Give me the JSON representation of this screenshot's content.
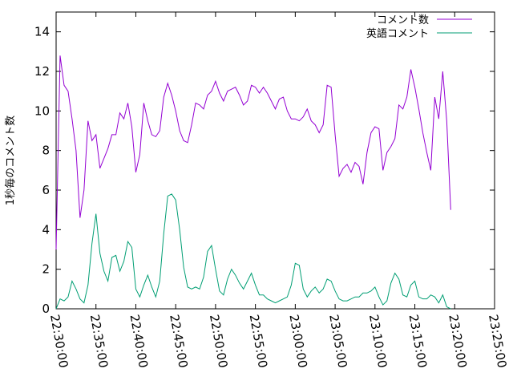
{
  "chart_data": {
    "type": "line",
    "ylabel": "1秒毎のコメント数",
    "xlim_minutes": [
      0,
      55
    ],
    "ylim": [
      0,
      15
    ],
    "x_tick_labels": [
      "22:30:00",
      "22:35:00",
      "22:40:00",
      "22:45:00",
      "22:50:00",
      "22:55:00",
      "23:00:00",
      "23:05:00",
      "23:10:00",
      "23:15:00",
      "23:20:00",
      "23:25:00"
    ],
    "y_tick_labels": [
      "0",
      "2",
      "4",
      "6",
      "8",
      "10",
      "12",
      "14"
    ],
    "legend_position": "top-right",
    "series": [
      {
        "name": "コメント数",
        "color": "#9400d3",
        "x_minutes": [
          0,
          0.5,
          1,
          1.5,
          2,
          2.5,
          3,
          3.5,
          4,
          4.5,
          5,
          5.5,
          6,
          6.5,
          7,
          7.5,
          8,
          8.5,
          9,
          9.5,
          10,
          10.5,
          11,
          11.5,
          12,
          12.5,
          13,
          13.5,
          14,
          14.5,
          15,
          15.5,
          16,
          16.5,
          17,
          17.5,
          18,
          18.5,
          19,
          19.5,
          20,
          20.5,
          21,
          21.5,
          22,
          22.5,
          23,
          23.5,
          24,
          24.5,
          25,
          25.5,
          26,
          26.5,
          27,
          27.5,
          28,
          28.5,
          29,
          29.5,
          30,
          30.5,
          31,
          31.5,
          32,
          32.5,
          33,
          33.5,
          34,
          34.5,
          35,
          35.5,
          36,
          36.5,
          37,
          37.5,
          38,
          38.5,
          39,
          39.5,
          40,
          40.5,
          41,
          41.5,
          42,
          42.5,
          43,
          43.5,
          44,
          44.5,
          45,
          45.5,
          46,
          46.5,
          47,
          47.5,
          48,
          48.5,
          49,
          49.5,
          50,
          50.5,
          51,
          51.5
        ],
        "values": [
          3.0,
          12.8,
          11.3,
          11.0,
          9.6,
          8.0,
          4.6,
          6.0,
          9.5,
          8.5,
          8.8,
          7.1,
          7.6,
          8.1,
          8.8,
          8.8,
          9.9,
          9.6,
          10.4,
          9.2,
          6.9,
          7.8,
          10.4,
          9.5,
          8.8,
          8.7,
          9.0,
          10.7,
          11.4,
          10.8,
          10.0,
          9.0,
          8.5,
          8.4,
          9.3,
          10.4,
          10.3,
          10.1,
          10.8,
          11.0,
          11.5,
          10.9,
          10.5,
          11.0,
          11.1,
          11.2,
          10.8,
          10.3,
          10.5,
          11.3,
          11.2,
          10.9,
          11.2,
          10.9,
          10.5,
          10.1,
          10.6,
          10.7,
          10.0,
          9.6,
          9.6,
          9.5,
          9.7,
          10.1,
          9.5,
          9.3,
          8.9,
          9.3,
          11.3,
          11.2,
          8.8,
          6.7,
          7.1,
          7.3,
          6.9,
          7.4,
          7.2,
          6.3,
          7.9,
          8.9,
          9.2,
          9.1,
          7.0,
          7.9,
          8.2,
          8.6,
          10.3,
          10.1,
          10.7,
          12.1,
          11.2,
          10.1,
          8.9,
          7.9,
          7.0,
          10.7,
          9.6,
          12.0,
          9.5,
          5.0,
          null,
          null,
          null,
          null
        ]
      },
      {
        "name": "英語コメント",
        "color": "#009e73",
        "x_minutes": [
          0,
          0.5,
          1,
          1.5,
          2,
          2.5,
          3,
          3.5,
          4,
          4.5,
          5,
          5.5,
          6,
          6.5,
          7,
          7.5,
          8,
          8.5,
          9,
          9.5,
          10,
          10.5,
          11,
          11.5,
          12,
          12.5,
          13,
          13.5,
          14,
          14.5,
          15,
          15.5,
          16,
          16.5,
          17,
          17.5,
          18,
          18.5,
          19,
          19.5,
          20,
          20.5,
          21,
          21.5,
          22,
          22.5,
          23,
          23.5,
          24,
          24.5,
          25,
          25.5,
          26,
          26.5,
          27,
          27.5,
          28,
          28.5,
          29,
          29.5,
          30,
          30.5,
          31,
          31.5,
          32,
          32.5,
          33,
          33.5,
          34,
          34.5,
          35,
          35.5,
          36,
          36.5,
          37,
          37.5,
          38,
          38.5,
          39,
          39.5,
          40,
          40.5,
          41,
          41.5,
          42,
          42.5,
          43,
          43.5,
          44,
          44.5,
          45,
          45.5,
          46,
          46.5,
          47,
          47.5,
          48,
          48.5,
          49,
          49.5
        ],
        "values": [
          0,
          0.5,
          0.4,
          0.6,
          1.4,
          1.0,
          0.5,
          0.3,
          1.2,
          3.3,
          4.8,
          2.8,
          1.9,
          1.4,
          2.6,
          2.7,
          1.9,
          2.4,
          3.4,
          3.1,
          1.0,
          0.6,
          1.2,
          1.7,
          1.1,
          0.6,
          1.4,
          3.8,
          5.7,
          5.8,
          5.5,
          4.0,
          2.1,
          1.1,
          1.0,
          1.1,
          1.0,
          1.6,
          2.9,
          3.2,
          2.0,
          0.9,
          0.7,
          1.5,
          2.0,
          1.7,
          1.3,
          1.0,
          1.4,
          1.8,
          1.2,
          0.7,
          0.7,
          0.5,
          0.4,
          0.3,
          0.4,
          0.5,
          0.6,
          1.2,
          2.3,
          2.2,
          1.0,
          0.6,
          0.9,
          1.1,
          0.8,
          1.0,
          1.5,
          1.4,
          0.9,
          0.5,
          0.4,
          0.4,
          0.5,
          0.6,
          0.6,
          0.8,
          0.8,
          0.9,
          1.1,
          0.6,
          0.2,
          0.4,
          1.3,
          1.8,
          1.5,
          0.7,
          0.6,
          1.2,
          1.4,
          0.6,
          0.5,
          0.5,
          0.7,
          0.6,
          0.3,
          0.7,
          0.1,
          0
        ]
      }
    ]
  }
}
